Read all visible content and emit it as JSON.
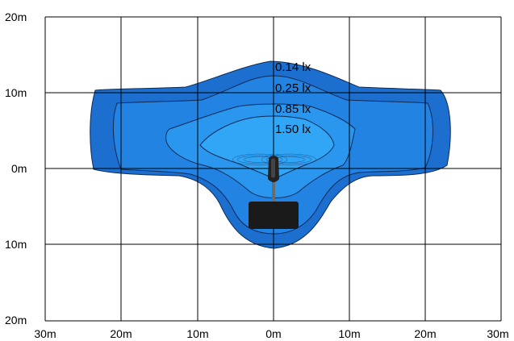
{
  "y_axis_labels": [
    "20m",
    "10m",
    "0m",
    "10m",
    "20m"
  ],
  "x_axis_labels": [
    "30m",
    "20m",
    "10m",
    "0m",
    "10m",
    "20m",
    "30m"
  ],
  "isolux_labels": [
    "0.14 lx",
    "0.25 lx",
    "0.85 lx",
    "1.50 lx"
  ],
  "colors": {
    "zone_0_14": "#1c6fcf",
    "zone_0_25": "#2283e3",
    "zone_0_85": "#2a96ee",
    "zone_1_50": "#31a6f6",
    "contour_line": "#0d2a55",
    "grid": "#000000",
    "vehicle": "#1a1a1a"
  }
}
